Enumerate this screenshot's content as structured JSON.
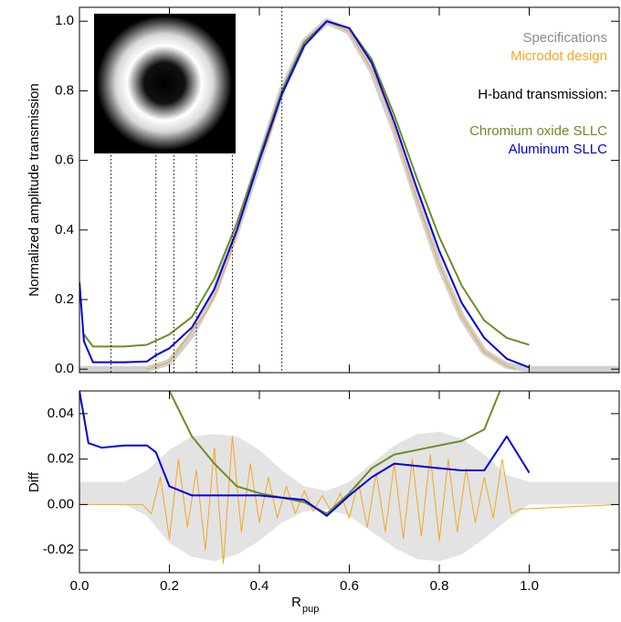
{
  "chart_data": [
    {
      "type": "line",
      "ylabel": "Normalized amplitude transmission",
      "xlim": [
        0,
        1.2
      ],
      "ylim": [
        -0.01,
        1.04
      ],
      "yticks": [
        {
          "value": 0,
          "label": "0.0"
        },
        0.2,
        0.4,
        0.6,
        0.8,
        {
          "value": 1,
          "label": "1.0"
        }
      ],
      "zone_edges": [
        0.07,
        0.17,
        0.21,
        0.26,
        0.34,
        0.45
      ],
      "legend_title": "H-band transmission:",
      "series": [
        {
          "name": "Specifications",
          "color": "#d0d0d0",
          "x": [
            0,
            0.05,
            0.1,
            0.15,
            0.2,
            0.25,
            0.3,
            0.35,
            0.4,
            0.45,
            0.5,
            0.55,
            0.6,
            0.65,
            0.7,
            0.75,
            0.8,
            0.85,
            0.9,
            0.95,
            1.0,
            1.05,
            1.1,
            1.15,
            1.2
          ],
          "values": [
            0,
            0,
            0,
            0,
            0.02,
            0.1,
            0.22,
            0.4,
            0.6,
            0.8,
            0.94,
            1.0,
            0.97,
            0.86,
            0.69,
            0.49,
            0.3,
            0.15,
            0.05,
            0.01,
            0,
            0,
            0,
            0,
            0
          ]
        },
        {
          "name": "Microdot design",
          "color": "#f5a623",
          "x": [
            0.15,
            0.2,
            0.25,
            0.28,
            0.3,
            0.33,
            0.35,
            0.4,
            0.42,
            0.45,
            0.5,
            0.55,
            0.6,
            0.65,
            0.68,
            0.7,
            0.75,
            0.8,
            0.85,
            0.9,
            0.95,
            0.97
          ],
          "values": [
            0,
            0.02,
            0.11,
            0.16,
            0.21,
            0.31,
            0.39,
            0.6,
            0.66,
            0.79,
            0.94,
            1.0,
            0.97,
            0.86,
            0.77,
            0.69,
            0.49,
            0.3,
            0.15,
            0.05,
            0.01,
            0
          ]
        },
        {
          "name": "Chromium oxide SLLC",
          "color": "#6b8e23",
          "x": [
            0.01,
            0.03,
            0.1,
            0.15,
            0.2,
            0.25,
            0.3,
            0.35,
            0.4,
            0.45,
            0.5,
            0.55,
            0.6,
            0.65,
            0.7,
            0.75,
            0.8,
            0.85,
            0.9,
            0.95,
            1.0
          ],
          "values": [
            0.1,
            0.065,
            0.065,
            0.07,
            0.1,
            0.15,
            0.26,
            0.42,
            0.61,
            0.8,
            0.94,
            1.0,
            0.98,
            0.89,
            0.73,
            0.55,
            0.38,
            0.24,
            0.14,
            0.09,
            0.07
          ]
        },
        {
          "name": "Aluminum SLLC",
          "color": "#0000e0",
          "x": [
            0,
            0.01,
            0.03,
            0.1,
            0.15,
            0.17,
            0.2,
            0.25,
            0.3,
            0.35,
            0.4,
            0.45,
            0.5,
            0.55,
            0.6,
            0.65,
            0.7,
            0.75,
            0.8,
            0.85,
            0.9,
            0.95,
            1.0
          ],
          "values": [
            0.25,
            0.08,
            0.02,
            0.02,
            0.022,
            0.04,
            0.06,
            0.12,
            0.23,
            0.4,
            0.6,
            0.79,
            0.93,
            1.0,
            0.98,
            0.88,
            0.71,
            0.52,
            0.34,
            0.19,
            0.09,
            0.03,
            0.005
          ]
        }
      ]
    },
    {
      "type": "line",
      "ylabel": "Diff",
      "xlabel": "R",
      "xlabel_sub": "pup",
      "xlim": [
        0,
        1.2
      ],
      "ylim": [
        -0.03,
        0.05
      ],
      "xticks": [
        {
          "value": 0,
          "label": "0.0"
        },
        0.2,
        0.4,
        0.6,
        0.8,
        {
          "value": 1,
          "label": "1.0"
        }
      ],
      "yticks": [
        0.04,
        0.02,
        {
          "value": 0,
          "label": "0.00"
        },
        -0.02
      ],
      "band": {
        "color": "#e3e3e3",
        "x": [
          0,
          0.05,
          0.1,
          0.15,
          0.2,
          0.25,
          0.3,
          0.35,
          0.4,
          0.45,
          0.5,
          0.55,
          0.6,
          0.65,
          0.7,
          0.75,
          0.8,
          0.85,
          0.9,
          0.95,
          1.0,
          1.05,
          1.1,
          1.15,
          1.2
        ],
        "upper": [
          0.01,
          0.01,
          0.01,
          0.015,
          0.024,
          0.03,
          0.031,
          0.03,
          0.024,
          0.015,
          0.008,
          0.006,
          0.01,
          0.018,
          0.026,
          0.031,
          0.032,
          0.029,
          0.022,
          0.013,
          0.01,
          0.01,
          0.01,
          0.01,
          0.01
        ],
        "lower": [
          0,
          0,
          0,
          -0.005,
          -0.017,
          -0.023,
          -0.025,
          -0.022,
          -0.016,
          -0.008,
          -0.003,
          -0.002,
          -0.005,
          -0.012,
          -0.019,
          -0.024,
          -0.025,
          -0.022,
          -0.015,
          -0.007,
          0,
          0,
          0,
          0,
          0
        ]
      },
      "series": [
        {
          "color": "#f5a623",
          "x": [
            0,
            0.14,
            0.16,
            0.18,
            0.2,
            0.22,
            0.24,
            0.26,
            0.28,
            0.3,
            0.32,
            0.34,
            0.36,
            0.38,
            0.4,
            0.42,
            0.44,
            0.46,
            0.48,
            0.5,
            0.52,
            0.54,
            0.56,
            0.58,
            0.6,
            0.62,
            0.64,
            0.66,
            0.68,
            0.7,
            0.72,
            0.74,
            0.76,
            0.78,
            0.8,
            0.82,
            0.84,
            0.86,
            0.88,
            0.9,
            0.92,
            0.94,
            0.96,
            0.98,
            1.2
          ],
          "values": [
            0,
            0,
            -0.004,
            0.012,
            -0.015,
            0.02,
            -0.01,
            0.015,
            -0.02,
            0.025,
            -0.026,
            0.03,
            -0.012,
            0.018,
            -0.008,
            0.012,
            -0.006,
            0.008,
            -0.004,
            0.006,
            -0.003,
            0.004,
            -0.003,
            0.005,
            -0.006,
            0.01,
            -0.01,
            0.014,
            -0.012,
            0.018,
            -0.015,
            0.02,
            -0.014,
            0.022,
            -0.016,
            0.02,
            -0.012,
            0.016,
            -0.008,
            0.012,
            -0.006,
            0.02,
            -0.004,
            -0.002,
            0
          ]
        },
        {
          "color": "#6b8e23",
          "x": [
            0.2,
            0.25,
            0.3,
            0.35,
            0.4,
            0.45,
            0.5,
            0.55,
            0.6,
            0.65,
            0.7,
            0.75,
            0.8,
            0.85,
            0.9,
            0.935
          ],
          "values": [
            0.05,
            0.03,
            0.018,
            0.008,
            0.005,
            0.003,
            0.001,
            -0.004,
            0.005,
            0.016,
            0.022,
            0.024,
            0.026,
            0.028,
            0.033,
            0.05
          ]
        },
        {
          "color": "#0000e0",
          "x": [
            0,
            0.02,
            0.05,
            0.1,
            0.15,
            0.17,
            0.2,
            0.25,
            0.3,
            0.35,
            0.4,
            0.45,
            0.5,
            0.55,
            0.6,
            0.65,
            0.7,
            0.75,
            0.8,
            0.85,
            0.9,
            0.95,
            1.0
          ],
          "values": [
            0.05,
            0.027,
            0.025,
            0.026,
            0.026,
            0.023,
            0.008,
            0.004,
            0.004,
            0.004,
            0.004,
            0.003,
            0.002,
            -0.005,
            0.004,
            0.012,
            0.018,
            0.017,
            0.016,
            0.015,
            0.015,
            0.03,
            0.014
          ]
        }
      ]
    }
  ]
}
